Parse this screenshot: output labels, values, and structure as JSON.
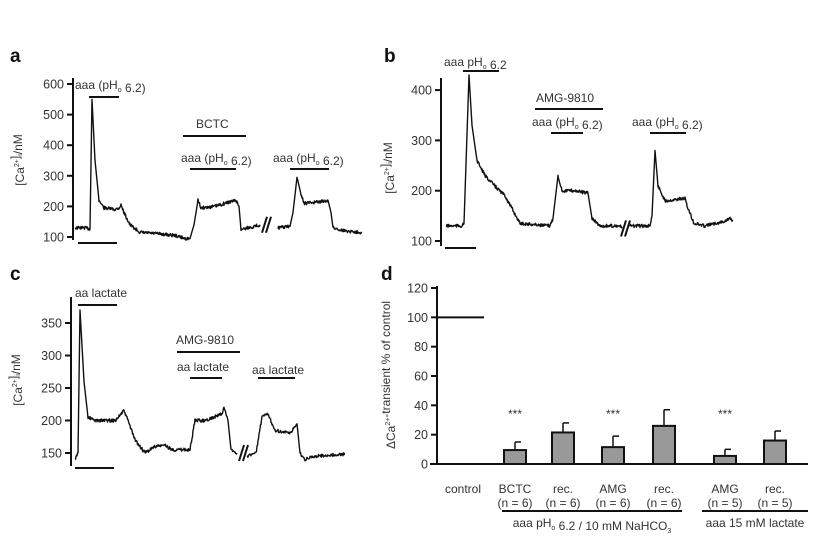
{
  "chart_data": [
    {
      "panel": "a",
      "type": "line",
      "ylabel": {
        "pre": "[Ca",
        "sup": "2+",
        "mid": "]",
        "sub": "i",
        "post": "/nM"
      },
      "yticks": [
        100,
        200,
        300,
        400,
        500,
        600
      ],
      "ylim": [
        100,
        600
      ],
      "series_note": "trace broken at //",
      "trace": [
        [
          0,
          130
        ],
        [
          11,
          130
        ],
        [
          15,
          125
        ],
        [
          17,
          550
        ],
        [
          20,
          350
        ],
        [
          24,
          220
        ],
        [
          29,
          195
        ],
        [
          40,
          190
        ],
        [
          44,
          195
        ],
        [
          46,
          205
        ],
        [
          49,
          180
        ],
        [
          55,
          140
        ],
        [
          65,
          115
        ],
        [
          85,
          110
        ],
        [
          100,
          105
        ],
        [
          110,
          95
        ],
        [
          115,
          95
        ],
        [
          119,
          140
        ],
        [
          123,
          220
        ],
        [
          126,
          195
        ],
        [
          140,
          200
        ],
        [
          155,
          215
        ],
        [
          161,
          220
        ],
        [
          164,
          200
        ],
        [
          166,
          125
        ],
        [
          180,
          135
        ],
        [
          185,
          140
        ],
        null,
        [
          203,
          130
        ],
        [
          215,
          135
        ],
        [
          218,
          180
        ],
        [
          222,
          295
        ],
        [
          226,
          240
        ],
        [
          229,
          210
        ],
        [
          245,
          215
        ],
        [
          253,
          220
        ],
        [
          256,
          180
        ],
        [
          258,
          130
        ],
        [
          270,
          120
        ],
        [
          287,
          115
        ]
      ],
      "annotations": [
        {
          "pre": "aaa (pH",
          "sub": "o",
          "post": " 6.2)"
        },
        {
          "pre": "BCTC",
          "sub": "",
          "post": ""
        },
        {
          "pre": "aaa (pH",
          "sub": "o",
          "post": " 6.2)"
        },
        {
          "pre": "aaa (pH",
          "sub": "o",
          "post": " 6.2)"
        }
      ]
    },
    {
      "panel": "b",
      "type": "line",
      "ylabel": {
        "pre": "[Ca",
        "sup": "2+",
        "mid": "]",
        "sub": "i",
        "post": "/nM"
      },
      "yticks": [
        100,
        200,
        300,
        400
      ],
      "ylim": [
        100,
        430
      ],
      "trace": [
        [
          0,
          130
        ],
        [
          16,
          130
        ],
        [
          18,
          135
        ],
        [
          23,
          430
        ],
        [
          26,
          330
        ],
        [
          31,
          260
        ],
        [
          39,
          230
        ],
        [
          51,
          205
        ],
        [
          59,
          190
        ],
        [
          74,
          135
        ],
        [
          104,
          130
        ],
        [
          107,
          145
        ],
        [
          112,
          230
        ],
        [
          116,
          200
        ],
        [
          129,
          200
        ],
        [
          142,
          195
        ],
        [
          146,
          145
        ],
        [
          154,
          130
        ],
        [
          174,
          130
        ],
        [
          176,
          125
        ],
        null,
        [
          184,
          130
        ],
        [
          204,
          130
        ],
        [
          206,
          150
        ],
        [
          209,
          280
        ],
        [
          212,
          210
        ],
        [
          219,
          180
        ],
        [
          239,
          185
        ],
        [
          241,
          170
        ],
        [
          248,
          135
        ],
        [
          259,
          130
        ],
        [
          269,
          135
        ],
        [
          279,
          140
        ],
        [
          284,
          145
        ],
        [
          287,
          140
        ]
      ],
      "annotations": [
        {
          "pre": "aaa pH",
          "sub": "o",
          "post": " 6.2"
        },
        {
          "pre": "AMG-9810",
          "sub": "",
          "post": ""
        },
        {
          "pre": "aaa (pH",
          "sub": "o",
          "post": " 6.2)"
        },
        {
          "pre": "aaa (pH",
          "sub": "o",
          "post": " 6.2)"
        }
      ]
    },
    {
      "panel": "c",
      "type": "line",
      "ylabel": {
        "pre": "[Ca",
        "sup": "2+",
        "mid": "]",
        "sub": "i",
        "post": "/nM"
      },
      "yticks": [
        150,
        200,
        250,
        300,
        350
      ],
      "ylim": [
        140,
        370
      ],
      "trace": [
        [
          0,
          140
        ],
        [
          3,
          150
        ],
        [
          5,
          370
        ],
        [
          9,
          260
        ],
        [
          13,
          205
        ],
        [
          20,
          200
        ],
        [
          40,
          200
        ],
        [
          46,
          210
        ],
        [
          49,
          215
        ],
        [
          53,
          200
        ],
        [
          60,
          170
        ],
        [
          70,
          150
        ],
        [
          80,
          160
        ],
        [
          90,
          162
        ],
        [
          97,
          155
        ],
        [
          115,
          155
        ],
        [
          120,
          200
        ],
        [
          130,
          200
        ],
        [
          147,
          210
        ],
        [
          149,
          220
        ],
        [
          153,
          200
        ],
        [
          156,
          155
        ],
        [
          162,
          150
        ],
        null,
        [
          172,
          145
        ],
        [
          181,
          150
        ],
        [
          187,
          205
        ],
        [
          193,
          210
        ],
        [
          200,
          185
        ],
        [
          215,
          180
        ],
        [
          222,
          195
        ],
        [
          225,
          150
        ],
        [
          230,
          140
        ],
        [
          240,
          145
        ],
        [
          270,
          148
        ]
      ],
      "annotations": [
        {
          "pre": "aa lactate",
          "sub": "",
          "post": ""
        },
        {
          "pre": "AMG-9810",
          "sub": "",
          "post": ""
        },
        {
          "pre": "aa lactate",
          "sub": "",
          "post": ""
        },
        {
          "pre": "aa lactate",
          "sub": "",
          "post": ""
        }
      ]
    },
    {
      "panel": "d",
      "type": "bar",
      "ylabel": {
        "pre": "ΔCa",
        "sup": "2+",
        "post": "-transient % of control"
      },
      "yticks": [
        0,
        20,
        40,
        60,
        80,
        100,
        120
      ],
      "ylim": [
        0,
        120
      ],
      "categories": [
        {
          "name": "control",
          "n": ""
        },
        {
          "name": "BCTC",
          "n": "(n = 6)"
        },
        {
          "name": "rec.",
          "n": "(n = 6)"
        },
        {
          "name": "AMG",
          "n": "(n = 6)"
        },
        {
          "name": "rec.",
          "n": "(n = 6)"
        },
        {
          "name": "AMG",
          "n": "(n = 5)"
        },
        {
          "name": "rec.",
          "n": "(n = 5)"
        }
      ],
      "values": [
        100,
        9.5,
        21.5,
        11.5,
        26,
        5.5,
        16
      ],
      "errors": [
        0,
        5.5,
        6.5,
        7.5,
        11,
        4.5,
        6.5
      ],
      "significance": [
        "",
        "***",
        "",
        "***",
        "",
        "***",
        ""
      ],
      "bar_color": "#999999",
      "groups": [
        {
          "pre": "aaa pH",
          "sub": "o",
          "mid": " 6.2 / 10 mM NaHCO",
          "sub2": "3"
        },
        {
          "pre": "aaa 15 mM lactate",
          "sub": "",
          "mid": "",
          "sub2": ""
        }
      ]
    }
  ],
  "panel_letters": [
    "a",
    "b",
    "c",
    "d"
  ]
}
